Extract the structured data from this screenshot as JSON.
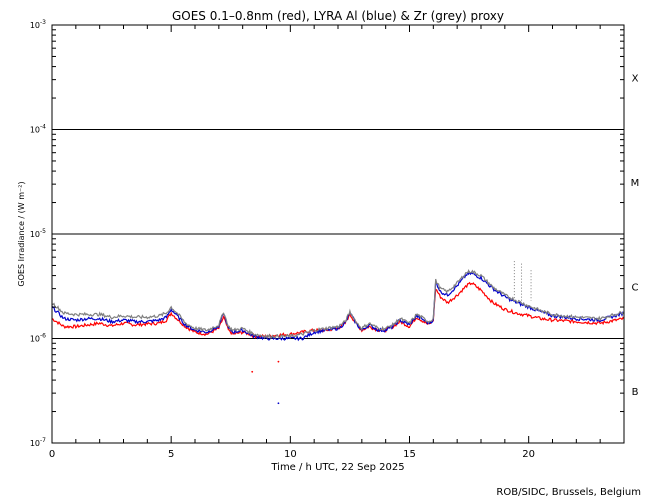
{
  "chart_data": {
    "type": "line",
    "title": "GOES 0.1–0.8nm (red), LYRA Al (blue) & Zr (grey) proxy",
    "xlabel": "Time / h UTC, 22 Sep 2025",
    "ylabel": "GOES Irradiance / (W m⁻²)",
    "credit": "ROB/SIDC, Brussels, Belgium",
    "xlim": [
      0,
      24
    ],
    "ylim": [
      1e-07,
      0.001
    ],
    "yscale": "log",
    "x_ticks": [
      "0",
      "5",
      "10",
      "15",
      "20"
    ],
    "y_ticks": [
      {
        "base": "10",
        "exp": "-7"
      },
      {
        "base": "10",
        "exp": "-6"
      },
      {
        "base": "10",
        "exp": "-5"
      },
      {
        "base": "10",
        "exp": "-4"
      },
      {
        "base": "10",
        "exp": "-3"
      }
    ],
    "flare_classes": [
      "B",
      "C",
      "M",
      "X"
    ],
    "class_lines": [
      1e-06,
      1e-05,
      0.0001
    ],
    "series": [
      {
        "name": "red",
        "color": "#ff0000",
        "x": [
          0,
          0.5,
          1,
          1.5,
          2,
          2.5,
          3,
          3.5,
          4,
          4.5,
          4.8,
          5.0,
          5.3,
          5.6,
          6.0,
          6.5,
          7.0,
          7.2,
          7.4,
          7.6,
          8.0,
          8.3,
          8.5,
          9.0,
          9.5,
          10.0,
          10.5,
          11.0,
          11.5,
          12.0,
          12.3,
          12.5,
          12.8,
          13.0,
          13.3,
          13.7,
          14.0,
          14.3,
          14.6,
          15.0,
          15.3,
          15.5,
          15.8,
          16.0,
          16.1,
          16.3,
          16.6,
          17.0,
          17.4,
          17.6,
          18.0,
          18.5,
          19.0,
          19.5,
          20.0,
          20.5,
          21,
          22,
          23,
          24
        ],
        "y": [
          1.55e-06,
          1.3e-06,
          1.3e-06,
          1.35e-06,
          1.4e-06,
          1.32e-06,
          1.4e-06,
          1.35e-06,
          1.38e-06,
          1.4e-06,
          1.5e-06,
          1.75e-06,
          1.5e-06,
          1.3e-06,
          1.15e-06,
          1.1e-06,
          1.25e-06,
          1.6e-06,
          1.2e-06,
          1.1e-06,
          1.15e-06,
          1.1e-06,
          1.05e-06,
          1.05e-06,
          1.08e-06,
          1.1e-06,
          1.15e-06,
          1.2e-06,
          1.2e-06,
          1.25e-06,
          1.4e-06,
          1.7e-06,
          1.35e-06,
          1.2e-06,
          1.3e-06,
          1.2e-06,
          1.2e-06,
          1.3e-06,
          1.45e-06,
          1.3e-06,
          1.6e-06,
          1.5e-06,
          1.35e-06,
          1.5e-06,
          3e-06,
          2.5e-06,
          2.2e-06,
          2.6e-06,
          3.2e-06,
          3.4e-06,
          2.9e-06,
          2.2e-06,
          1.9e-06,
          1.75e-06,
          1.65e-06,
          1.55e-06,
          1.5e-06,
          1.45e-06,
          1.4e-06,
          1.55e-06
        ]
      },
      {
        "name": "blue",
        "color": "#0000cc",
        "x": [
          0,
          0.5,
          1,
          1.5,
          2,
          2.5,
          3,
          3.5,
          4,
          4.5,
          4.8,
          5.0,
          5.3,
          5.6,
          6.0,
          6.5,
          7.0,
          7.2,
          7.4,
          7.6,
          8.0,
          8.3,
          8.5,
          9.0,
          9.5,
          10.0,
          10.5,
          11.0,
          11.5,
          12.0,
          12.3,
          12.5,
          12.8,
          13.0,
          13.3,
          13.7,
          14.0,
          14.3,
          14.6,
          15.0,
          15.3,
          15.5,
          15.8,
          16.0,
          16.1,
          16.3,
          16.6,
          17.0,
          17.4,
          17.6,
          18.0,
          18.5,
          19.0,
          19.5,
          20.0,
          20.5,
          21,
          22,
          23,
          24
        ],
        "y": [
          2e-06,
          1.55e-06,
          1.5e-06,
          1.55e-06,
          1.55e-06,
          1.45e-06,
          1.5e-06,
          1.45e-06,
          1.45e-06,
          1.5e-06,
          1.6e-06,
          1.9e-06,
          1.6e-06,
          1.35e-06,
          1.2e-06,
          1.15e-06,
          1.3e-06,
          1.75e-06,
          1.25e-06,
          1.15e-06,
          1.2e-06,
          1.1e-06,
          1.05e-06,
          1e-06,
          1e-06,
          1e-06,
          1e-06,
          1.15e-06,
          1.2e-06,
          1.25e-06,
          1.4e-06,
          1.75e-06,
          1.35e-06,
          1.2e-06,
          1.35e-06,
          1.2e-06,
          1.2e-06,
          1.3e-06,
          1.5e-06,
          1.35e-06,
          1.65e-06,
          1.55e-06,
          1.4e-06,
          1.5e-06,
          3.5e-06,
          2.8e-06,
          2.6e-06,
          3.2e-06,
          4.1e-06,
          4.2e-06,
          3.8e-06,
          3e-06,
          2.5e-06,
          2.2e-06,
          2e-06,
          1.8e-06,
          1.65e-06,
          1.55e-06,
          1.5e-06,
          1.75e-06
        ]
      },
      {
        "name": "grey",
        "color": "#808080",
        "x": [
          0,
          0.5,
          1,
          1.5,
          2,
          2.5,
          3,
          3.5,
          4,
          4.5,
          4.8,
          5.0,
          5.3,
          5.6,
          6.0,
          6.5,
          7.0,
          7.2,
          7.4,
          7.6,
          8.0,
          8.3,
          8.5,
          9.0,
          9.5,
          10.0,
          10.5,
          11.0,
          11.5,
          12.0,
          12.3,
          12.5,
          12.8,
          13.0,
          13.3,
          13.7,
          14.0,
          14.3,
          14.6,
          15.0,
          15.3,
          15.5,
          15.8,
          16.0,
          16.1,
          16.3,
          16.6,
          17.0,
          17.4,
          17.6,
          18.0,
          18.5,
          19.0,
          19.5,
          20.0,
          20.5,
          21,
          22,
          23,
          24
        ],
        "y": [
          2.2e-06,
          1.75e-06,
          1.7e-06,
          1.7e-06,
          1.7e-06,
          1.6e-06,
          1.65e-06,
          1.6e-06,
          1.6e-06,
          1.65e-06,
          1.75e-06,
          2e-06,
          1.7e-06,
          1.4e-06,
          1.25e-06,
          1.2e-06,
          1.35e-06,
          1.8e-06,
          1.3e-06,
          1.2e-06,
          1.25e-06,
          1.15e-06,
          1.1e-06,
          1.05e-06,
          1.05e-06,
          1.05e-06,
          1.1e-06,
          1.2e-06,
          1.25e-06,
          1.3e-06,
          1.45e-06,
          1.8e-06,
          1.4e-06,
          1.25e-06,
          1.4e-06,
          1.25e-06,
          1.25e-06,
          1.35e-06,
          1.55e-06,
          1.4e-06,
          1.7e-06,
          1.6e-06,
          1.45e-06,
          1.55e-06,
          3.6e-06,
          3e-06,
          2.8e-06,
          3.4e-06,
          4.3e-06,
          4.4e-06,
          4e-06,
          3.1e-06,
          2.6e-06,
          2.3e-06,
          2.05e-06,
          1.85e-06,
          1.7e-06,
          1.6e-06,
          1.55e-06,
          1.8e-06
        ]
      }
    ],
    "spikes": [
      {
        "series": "grey",
        "x": 19.4,
        "y": 5.5e-06
      },
      {
        "series": "grey",
        "x": 19.7,
        "y": 5.2e-06
      },
      {
        "series": "grey",
        "x": 20.1,
        "y": 4.5e-06
      }
    ],
    "outliers": [
      {
        "series": "red",
        "x": 8.4,
        "y": 4.8e-07
      },
      {
        "series": "red",
        "x": 9.5,
        "y": 6e-07
      },
      {
        "series": "blue",
        "x": 9.5,
        "y": 2.4e-07
      }
    ]
  }
}
